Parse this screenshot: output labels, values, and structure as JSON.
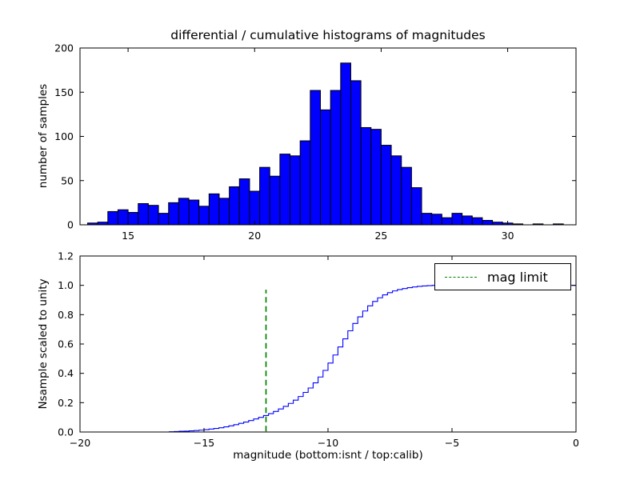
{
  "background": "#ffffff",
  "chart_data": [
    {
      "type": "bar",
      "title": "differential / cumulative histograms of magnitudes",
      "ylabel": "number of samples",
      "xlim": [
        13.1,
        32.7
      ],
      "ylim": [
        0,
        200
      ],
      "xticks": [
        15,
        20,
        25,
        30
      ],
      "xtick_labels": [
        "15",
        "20",
        "25",
        "30"
      ],
      "yticks": [
        0,
        50,
        100,
        150,
        200
      ],
      "ytick_labels": [
        "0",
        "50",
        "100",
        "150",
        "200"
      ],
      "bar_color": "#0000ff",
      "bar_edge_color": "#000000",
      "bin_start": 13.4,
      "bin_width": 0.4,
      "values": [
        2,
        3,
        15,
        17,
        14,
        24,
        22,
        13,
        25,
        30,
        28,
        21,
        35,
        30,
        43,
        52,
        38,
        65,
        55,
        80,
        78,
        95,
        152,
        130,
        152,
        183,
        163,
        110,
        108,
        90,
        78,
        65,
        42,
        13,
        12,
        8,
        13,
        10,
        8,
        5,
        3,
        2,
        1,
        0,
        1,
        0,
        1
      ]
    },
    {
      "type": "line",
      "xlabel": "magnitude (bottom:isnt / top:calib)",
      "ylabel": "Nsample scaled to unity",
      "xlim": [
        -20,
        0
      ],
      "ylim": [
        0,
        1.2
      ],
      "xticks": [
        -20,
        -15,
        -10,
        -5,
        0
      ],
      "xtick_labels": [
        "−20",
        "−15",
        "−10",
        "−5",
        "0"
      ],
      "yticks": [
        0,
        0.2,
        0.4,
        0.6,
        0.8,
        1.0,
        1.2
      ],
      "ytick_labels": [
        "0.0",
        "0.2",
        "0.4",
        "0.6",
        "0.8",
        "1.0",
        "1.2"
      ],
      "line_color": "#0000ff",
      "legend": {
        "label": "mag limit",
        "line_color": "#008000"
      },
      "mag_limit_x": -12.5,
      "mag_limit_ymax": 0.97,
      "points": [
        [
          -20,
          0
        ],
        [
          -16.4,
          0.002
        ],
        [
          -16.2,
          0.003
        ],
        [
          -16,
          0.005
        ],
        [
          -15.8,
          0.006
        ],
        [
          -15.6,
          0.008
        ],
        [
          -15.4,
          0.01
        ],
        [
          -15.2,
          0.013
        ],
        [
          -15,
          0.016
        ],
        [
          -14.8,
          0.02
        ],
        [
          -14.6,
          0.024
        ],
        [
          -14.4,
          0.029
        ],
        [
          -14.2,
          0.035
        ],
        [
          -14,
          0.042
        ],
        [
          -13.8,
          0.05
        ],
        [
          -13.6,
          0.059
        ],
        [
          -13.4,
          0.068
        ],
        [
          -13.2,
          0.078
        ],
        [
          -13,
          0.089
        ],
        [
          -12.8,
          0.1
        ],
        [
          -12.6,
          0.112
        ],
        [
          -12.4,
          0.125
        ],
        [
          -12.2,
          0.14
        ],
        [
          -12,
          0.157
        ],
        [
          -11.8,
          0.175
        ],
        [
          -11.6,
          0.195
        ],
        [
          -11.4,
          0.217
        ],
        [
          -11.2,
          0.242
        ],
        [
          -11,
          0.27
        ],
        [
          -10.8,
          0.3
        ],
        [
          -10.6,
          0.335
        ],
        [
          -10.4,
          0.375
        ],
        [
          -10.2,
          0.42
        ],
        [
          -10,
          0.47
        ],
        [
          -9.8,
          0.525
        ],
        [
          -9.6,
          0.58
        ],
        [
          -9.4,
          0.635
        ],
        [
          -9.2,
          0.69
        ],
        [
          -9,
          0.74
        ],
        [
          -8.8,
          0.785
        ],
        [
          -8.6,
          0.825
        ],
        [
          -8.4,
          0.86
        ],
        [
          -8.2,
          0.89
        ],
        [
          -8,
          0.915
        ],
        [
          -7.8,
          0.935
        ],
        [
          -7.6,
          0.95
        ],
        [
          -7.4,
          0.962
        ],
        [
          -7.2,
          0.971
        ],
        [
          -7,
          0.978
        ],
        [
          -6.8,
          0.984
        ],
        [
          -6.6,
          0.989
        ],
        [
          -6.4,
          0.993
        ],
        [
          -6.2,
          0.996
        ],
        [
          -6,
          0.998
        ],
        [
          -5.8,
          1.0
        ],
        [
          0,
          1.0
        ]
      ]
    }
  ]
}
